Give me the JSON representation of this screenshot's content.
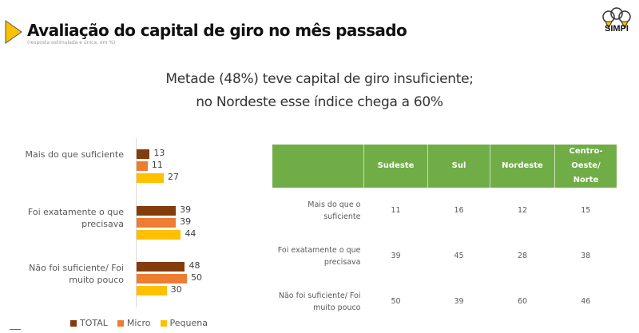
{
  "header": {
    "title": "Avaliação do capital de giro no mês passado",
    "subtitle": "(resposta estimulada e única, em %)",
    "headline_line1": "Metade (48%) teve capital de giro insuficiente;",
    "headline_line2": "no Nordeste esse índice chega a 60%",
    "logo_text": "SIMPI",
    "arrow_color": "#ffc000"
  },
  "chart_data": {
    "type": "bar",
    "orientation": "horizontal",
    "categories": [
      "Mais do que suficiente",
      "Foi exatamente o que precisava",
      "Não foi suficiente/ Foi muito pouco"
    ],
    "series": [
      {
        "name": "TOTAL",
        "color": "#843c0c",
        "values": [
          13,
          39,
          48
        ]
      },
      {
        "name": "Micro",
        "color": "#ed7d31",
        "values": [
          11,
          39,
          50
        ]
      },
      {
        "name": "Pequena",
        "color": "#ffc000",
        "values": [
          27,
          44,
          30
        ]
      }
    ],
    "xlim": [
      0,
      60
    ],
    "grid": false,
    "legend": "bottom",
    "data_labels": true
  },
  "table": {
    "header_color": "#70ad47",
    "columns": [
      "",
      "Sudeste",
      "Sul",
      "Nordeste",
      "Centro-Oeste/ Norte"
    ],
    "rows": [
      {
        "label": "Mais do que o suficiente",
        "values": [
          "11",
          "16",
          "12",
          "15"
        ]
      },
      {
        "label": "Foi exatamente o que precisava",
        "values": [
          "39",
          "45",
          "28",
          "38"
        ]
      },
      {
        "label": "Não foi suficiente/ Foi muito pouco",
        "values": [
          "50",
          "39",
          "60",
          "46"
        ]
      }
    ]
  }
}
